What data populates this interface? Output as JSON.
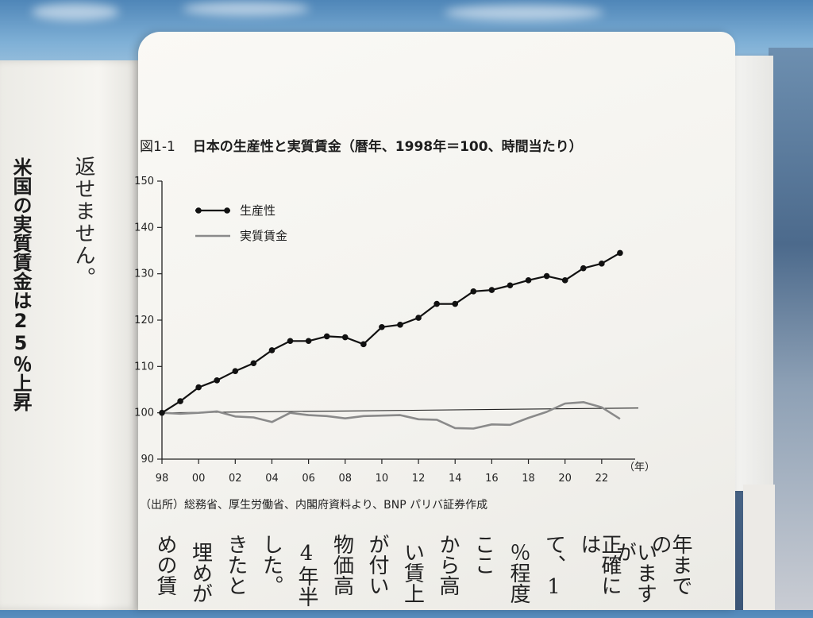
{
  "figure": {
    "number": "図1-1",
    "title": "日本の生産性と実質賃金（暦年、1998年＝100、時間当たり）",
    "source": "（出所）総務省、厚生労働省、内閣府資料より、BNP パリバ証券作成"
  },
  "left_page": {
    "line1": "返せません。",
    "heading": "米国の実質賃金は25％上昇"
  },
  "body_columns": [
    "年までの",
    "いますが",
    "正確には",
    "て、1",
    "％程度",
    "ここ",
    "から高",
    "い賃上",
    "が付い",
    "物価高",
    "4年半",
    "した。",
    "きたと",
    "埋めが",
    "めの賃"
  ],
  "chart_data": {
    "type": "line",
    "x_unit_label": "（年）",
    "x_ticks": [
      "98",
      "00",
      "02",
      "04",
      "06",
      "08",
      "10",
      "12",
      "14",
      "16",
      "18",
      "20",
      "22"
    ],
    "y_ticks": [
      90,
      100,
      110,
      120,
      130,
      140,
      150
    ],
    "ylim": [
      90,
      150
    ],
    "xlim": [
      1998,
      2024
    ],
    "grid": false,
    "legend_position": "top-left",
    "baseline_value": 100,
    "series": [
      {
        "name": "生産性",
        "color": "#111111",
        "markers": true,
        "x": [
          1998,
          1999,
          2000,
          2001,
          2002,
          2003,
          2004,
          2005,
          2006,
          2007,
          2008,
          2009,
          2010,
          2011,
          2012,
          2013,
          2014,
          2015,
          2016,
          2017,
          2018,
          2019,
          2020,
          2021,
          2022,
          2023
        ],
        "values": [
          100,
          102.5,
          105.5,
          107,
          109,
          110.7,
          113.5,
          115.5,
          115.5,
          116.5,
          116.3,
          114.8,
          118.5,
          119,
          120.5,
          123.5,
          123.5,
          126.2,
          126.5,
          127.5,
          128.6,
          129.5,
          128.6,
          131.2,
          132.2,
          134.5
        ]
      },
      {
        "name": "実質賃金",
        "color": "#8a8a8a",
        "markers": false,
        "x": [
          1998,
          1999,
          2000,
          2001,
          2002,
          2003,
          2004,
          2005,
          2006,
          2007,
          2008,
          2009,
          2010,
          2011,
          2012,
          2013,
          2014,
          2015,
          2016,
          2017,
          2018,
          2019,
          2020,
          2021,
          2022,
          2023
        ],
        "values": [
          100,
          99.8,
          100,
          100.3,
          99.2,
          99,
          98,
          100,
          99.5,
          99.3,
          98.8,
          99.3,
          99.4,
          99.5,
          98.6,
          98.5,
          96.7,
          96.6,
          97.5,
          97.4,
          98.9,
          100.2,
          102,
          102.3,
          101.2,
          98.7
        ]
      }
    ]
  }
}
